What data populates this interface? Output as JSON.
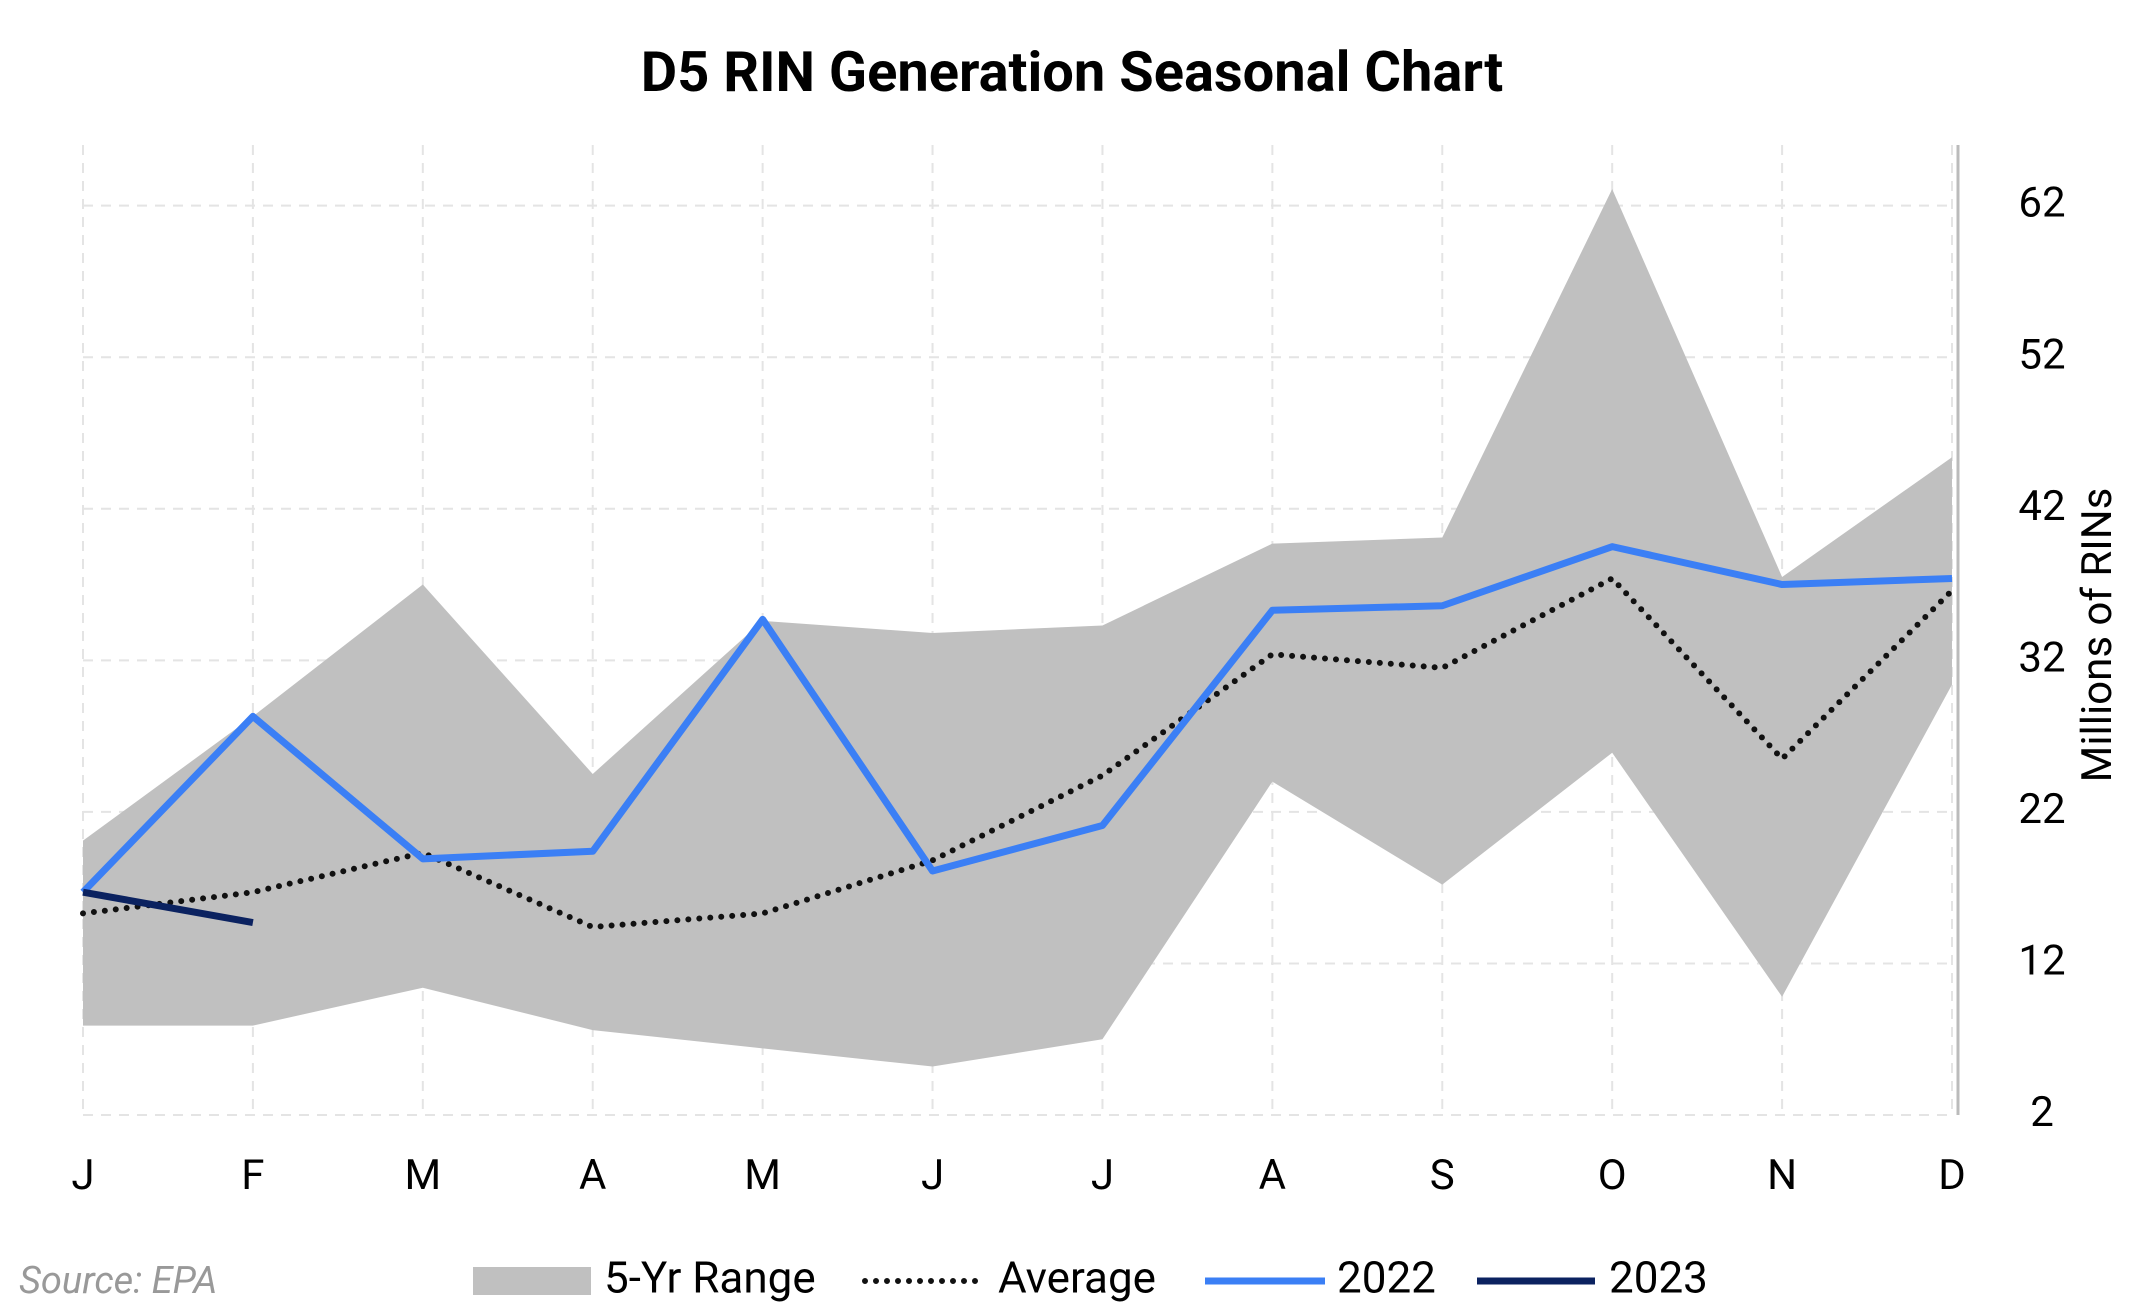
{
  "chart_data": {
    "type": "line",
    "title": "D5 RIN Generation Seasonal Chart",
    "y_axis_label": "Millions of RINs",
    "source": "Source: EPA",
    "categories": [
      "J",
      "F",
      "M",
      "A",
      "M",
      "J",
      "J",
      "A",
      "S",
      "O",
      "N",
      "D"
    ],
    "range": {
      "name": "5-Yr Range",
      "color": "#c0c0c0",
      "upper": [
        20.1,
        28.3,
        37.0,
        24.5,
        34.6,
        33.8,
        34.3,
        39.7,
        40.1,
        63.1,
        37.5,
        45.4
      ],
      "lower": [
        7.9,
        7.9,
        10.4,
        7.6,
        6.4,
        5.2,
        7.0,
        24.0,
        17.2,
        25.9,
        9.8,
        30.4
      ]
    },
    "series": [
      {
        "name": "Average",
        "color": "#111111",
        "style": "dotted",
        "values": [
          15.3,
          16.7,
          19.3,
          14.4,
          15.3,
          18.8,
          24.4,
          32.4,
          31.5,
          37.4,
          25.5,
          36.6
        ]
      },
      {
        "name": "2022",
        "color": "#3b7ff5",
        "style": "solid",
        "values": [
          16.7,
          28.3,
          18.9,
          19.4,
          34.7,
          18.1,
          21.1,
          35.3,
          35.6,
          39.5,
          37.0,
          37.4
        ]
      },
      {
        "name": "2023",
        "color": "#0b2260",
        "style": "solid",
        "values": [
          16.7,
          14.7,
          null,
          null,
          null,
          null,
          null,
          null,
          null,
          null,
          null,
          null
        ]
      }
    ],
    "ylim": [
      2,
      66
    ],
    "yticks": [
      2,
      12,
      22,
      32,
      42,
      52,
      62
    ],
    "grid": true,
    "y_axis_side": "right"
  }
}
